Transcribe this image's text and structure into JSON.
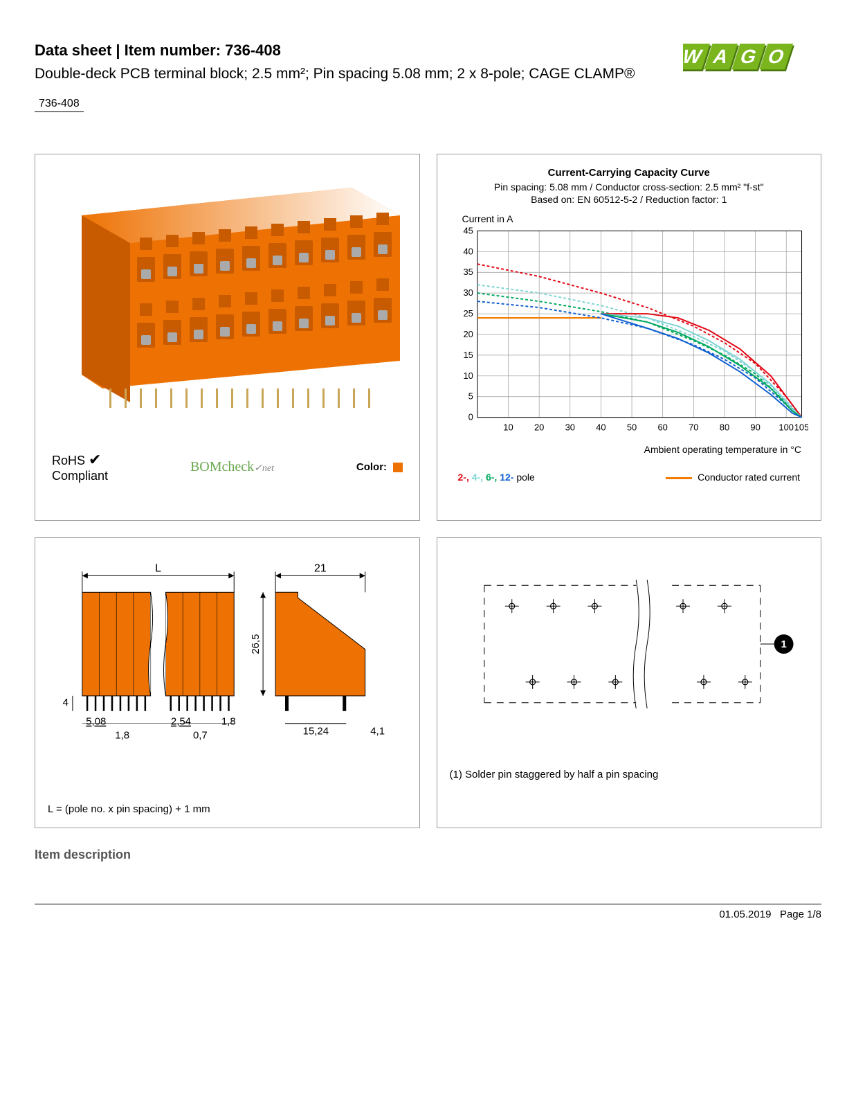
{
  "header": {
    "title_prefix": "Data sheet",
    "title_sep": "  |  ",
    "title_item_label": "Item number: ",
    "item_number": "736-408",
    "subtitle": "Double-deck PCB terminal block; 2.5 mm²; Pin spacing 5.08 mm; 2 x 8-pole; CAGE CLAMP®",
    "item_box": "736-408"
  },
  "logo": {
    "text": "WAGO",
    "fill": "#7ab51d",
    "shadow": "#4a7a0e"
  },
  "product_panel": {
    "block_color": "#ee7203",
    "block_dark": "#c85a00",
    "rohs_label": "RoHS\nCompliant",
    "checkmark": "✔",
    "bomcheck": "BOMcheck",
    "bomcheck_suffix": "✓net",
    "color_label": "Color:",
    "color_swatch": "#ee7203"
  },
  "chart": {
    "title": "Current-Carrying Capacity Curve",
    "sub1": "Pin spacing: 5.08 mm / Conductor cross-section: 2.5 mm² \"f-st\"",
    "sub2": "Based on: EN 60512-5-2 / Reduction factor: 1",
    "y_label": "Current in A",
    "x_label": "Ambient operating temperature in °C",
    "x_ticks": [
      0,
      10,
      20,
      30,
      40,
      50,
      60,
      70,
      80,
      90,
      100,
      105
    ],
    "y_ticks": [
      0,
      5,
      10,
      15,
      20,
      25,
      30,
      35,
      40,
      45
    ],
    "x_range": [
      0,
      105
    ],
    "y_range": [
      0,
      45
    ],
    "grid_color": "#999",
    "bg": "#ffffff",
    "series": [
      {
        "name": "2-pole",
        "color": "#e30613",
        "dash": "4,3",
        "points": [
          [
            0,
            37
          ],
          [
            20,
            34
          ],
          [
            40,
            30
          ],
          [
            55,
            26.5
          ],
          [
            70,
            22
          ],
          [
            80,
            18
          ],
          [
            90,
            13
          ],
          [
            100,
            5
          ],
          [
            105,
            0
          ]
        ]
      },
      {
        "name": "4-pole",
        "color": "#7fd4d4",
        "dash": "4,3",
        "points": [
          [
            0,
            32
          ],
          [
            20,
            30
          ],
          [
            40,
            27
          ],
          [
            55,
            24
          ],
          [
            70,
            19.5
          ],
          [
            80,
            16
          ],
          [
            90,
            11
          ],
          [
            100,
            4
          ],
          [
            105,
            0
          ]
        ]
      },
      {
        "name": "6-pole",
        "color": "#00a860",
        "dash": "4,3",
        "points": [
          [
            0,
            30
          ],
          [
            20,
            28
          ],
          [
            40,
            25.5
          ],
          [
            55,
            23
          ],
          [
            70,
            18.5
          ],
          [
            80,
            15
          ],
          [
            90,
            10.5
          ],
          [
            100,
            3.5
          ],
          [
            105,
            0
          ]
        ]
      },
      {
        "name": "12-pole",
        "color": "#1060d0",
        "dash": "4,3",
        "points": [
          [
            0,
            28
          ],
          [
            20,
            26.5
          ],
          [
            40,
            24
          ],
          [
            55,
            21.5
          ],
          [
            70,
            17.5
          ],
          [
            80,
            14
          ],
          [
            90,
            9.5
          ],
          [
            100,
            3
          ],
          [
            105,
            0
          ]
        ]
      },
      {
        "name": "2-pole-solid",
        "color": "#e30613",
        "dash": "",
        "points": [
          [
            40,
            25
          ],
          [
            55,
            25
          ],
          [
            65,
            24
          ],
          [
            75,
            21
          ],
          [
            85,
            16.5
          ],
          [
            95,
            10
          ],
          [
            102,
            3
          ],
          [
            105,
            0
          ]
        ]
      },
      {
        "name": "4-pole-solid",
        "color": "#7fd4d4",
        "dash": "",
        "points": [
          [
            40,
            25
          ],
          [
            55,
            24
          ],
          [
            65,
            22
          ],
          [
            75,
            18.5
          ],
          [
            85,
            14
          ],
          [
            95,
            8
          ],
          [
            102,
            2
          ],
          [
            105,
            0
          ]
        ]
      },
      {
        "name": "6-pole-solid",
        "color": "#00a860",
        "dash": "",
        "points": [
          [
            40,
            25
          ],
          [
            55,
            23
          ],
          [
            65,
            20.5
          ],
          [
            75,
            17
          ],
          [
            85,
            12.5
          ],
          [
            95,
            7
          ],
          [
            102,
            1.5
          ],
          [
            105,
            0
          ]
        ]
      },
      {
        "name": "12-pole-solid",
        "color": "#1060d0",
        "dash": "",
        "points": [
          [
            40,
            25
          ],
          [
            55,
            21.5
          ],
          [
            65,
            19
          ],
          [
            75,
            15.5
          ],
          [
            85,
            11
          ],
          [
            95,
            5.5
          ],
          [
            102,
            1
          ],
          [
            105,
            0
          ]
        ]
      }
    ],
    "rated_line": {
      "color": "#f47a00",
      "y": 24,
      "x_end": 40
    },
    "legend_poles": [
      {
        "label": "2-,",
        "color": "#e30613"
      },
      {
        "label": " 4-,",
        "color": "#7fd4d4"
      },
      {
        "label": " 6-,",
        "color": "#00a860"
      },
      {
        "label": " 12- ",
        "color": "#1060d0"
      }
    ],
    "legend_poles_suffix": "pole",
    "legend_conductor": "Conductor rated current",
    "legend_conductor_color": "#f47a00"
  },
  "dimensions": {
    "fill": "#ee7203",
    "line": "#000",
    "labels": {
      "L": "L",
      "width21": "21",
      "height": "26,5",
      "pin4": "4",
      "pitch": "5,08",
      "p18a": "1,8",
      "p254": "2,54",
      "p18b": "1,8",
      "p07": "0,7",
      "base": "15,24",
      "p41": "4,1"
    },
    "note": "L = (pole no. x pin spacing) + 1 mm"
  },
  "pinout": {
    "note": "(1) Solder pin staggered by half a pin spacing",
    "badge": "1"
  },
  "section_heading": "Item description",
  "footer": {
    "date": "01.05.2019",
    "page": "Page 1/8"
  }
}
